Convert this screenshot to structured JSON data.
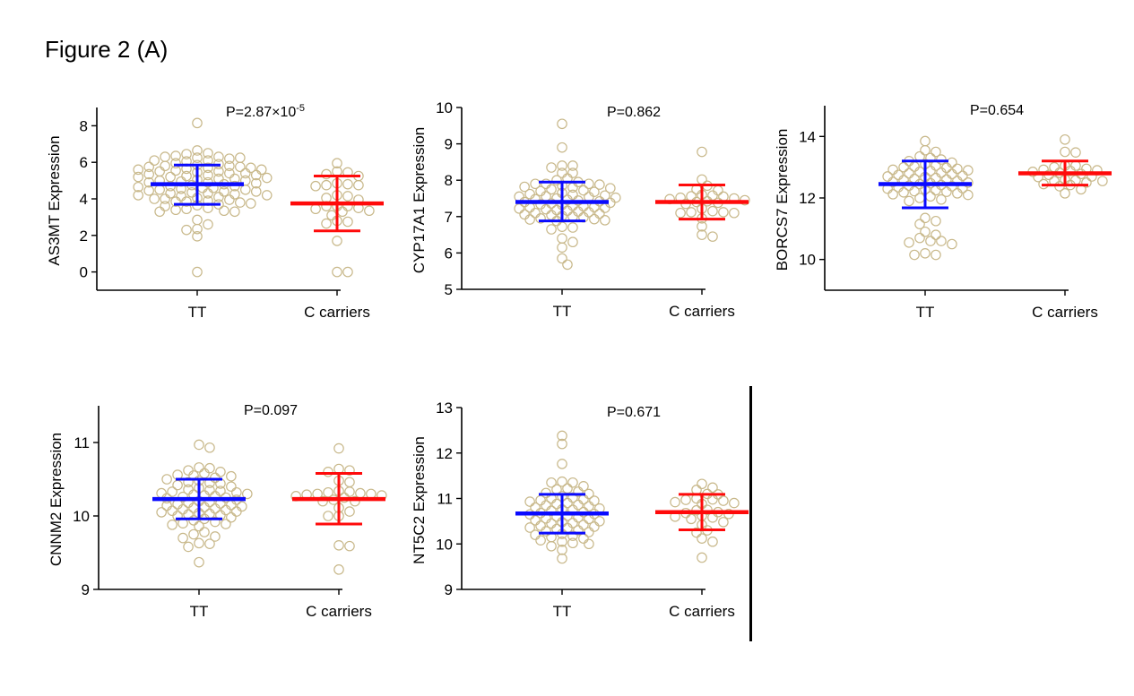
{
  "figure_title": "Figure 2 (A)",
  "colors": {
    "dot": "#c8b88a",
    "tt_bar": "#0a0aff",
    "c_bar": "#ff0a0a",
    "axis": "#000000"
  },
  "chart_data": [
    {
      "type": "scatter",
      "subtype": "dot-plot with mean ± SD",
      "title": "P=2.87×10-5",
      "title_base": "P=2.87×10",
      "title_exp": "-5",
      "ylabel": "AS3MT Expression",
      "categories": [
        "TT",
        "C carriers"
      ],
      "ylim": [
        -1,
        9
      ],
      "yticks": [
        0,
        2,
        4,
        6,
        8
      ],
      "series": [
        {
          "name": "TT",
          "mean": 4.8,
          "sd_low": 3.7,
          "sd_high": 5.85,
          "values": [
            8.15,
            0,
            6.65,
            6.5,
            6.45,
            6.3,
            6.35,
            6.25,
            6.2,
            6.3,
            6.25,
            6.1,
            6.05,
            6.1,
            5.95,
            5.9,
            5.85,
            5.8,
            5.8,
            5.75,
            5.75,
            5.7,
            5.7,
            5.65,
            5.6,
            5.6,
            5.55,
            5.5,
            5.5,
            5.45,
            5.4,
            5.4,
            5.35,
            5.3,
            5.3,
            5.25,
            5.2,
            5.2,
            5.15,
            5.1,
            5.1,
            5.05,
            5.0,
            5.0,
            4.95,
            4.9,
            4.9,
            4.85,
            4.8,
            4.75,
            4.7,
            4.7,
            4.65,
            4.6,
            4.6,
            4.55,
            4.5,
            4.5,
            4.45,
            4.4,
            4.4,
            4.35,
            4.3,
            4.3,
            4.25,
            4.2,
            4.2,
            4.15,
            4.1,
            4.05,
            4.0,
            4.0,
            3.95,
            3.9,
            3.85,
            3.85,
            3.8,
            3.75,
            3.7,
            3.65,
            3.6,
            3.5,
            3.45,
            3.4,
            3.35,
            3.3,
            3.3,
            2.85,
            2.6,
            2.35,
            2.3,
            1.95
          ]
        },
        {
          "name": "C carriers",
          "mean": 3.75,
          "sd_low": 2.25,
          "sd_high": 5.25,
          "values": [
            5.95,
            5.5,
            5.45,
            5.35,
            5.25,
            4.85,
            4.8,
            4.75,
            4.75,
            4.7,
            4.2,
            4.15,
            4.05,
            3.95,
            3.6,
            3.6,
            3.6,
            3.5,
            3.45,
            3.35,
            3.3,
            3.1,
            2.8,
            2.75,
            2.65,
            1.7,
            0,
            0
          ]
        }
      ]
    },
    {
      "type": "scatter",
      "subtype": "dot-plot with mean ± SD",
      "title": "P=0.862",
      "ylabel": "CYP17A1 Expression",
      "categories": [
        "TT",
        "C carriers"
      ],
      "ylim": [
        5,
        10
      ],
      "yticks": [
        5,
        6,
        7,
        8,
        9,
        10
      ],
      "series": [
        {
          "name": "TT",
          "mean": 7.4,
          "sd_low": 6.88,
          "sd_high": 7.95,
          "values": [
            9.55,
            8.9,
            8.4,
            8.4,
            8.35,
            8.2,
            8.2,
            8.05,
            8.0,
            7.95,
            7.9,
            7.9,
            7.9,
            7.88,
            7.85,
            7.82,
            7.8,
            7.78,
            7.75,
            7.72,
            7.7,
            7.68,
            7.65,
            7.62,
            7.6,
            7.58,
            7.56,
            7.55,
            7.54,
            7.52,
            7.5,
            7.48,
            7.46,
            7.44,
            7.42,
            7.4,
            7.38,
            7.36,
            7.34,
            7.32,
            7.3,
            7.28,
            7.26,
            7.25,
            7.24,
            7.22,
            7.2,
            7.18,
            7.16,
            7.14,
            7.12,
            7.1,
            7.08,
            7.06,
            7.04,
            7.02,
            7.0,
            6.98,
            6.95,
            6.93,
            6.92,
            6.9,
            6.88,
            6.72,
            6.7,
            6.65,
            6.4,
            6.3,
            6.15,
            5.85,
            5.68
          ]
        },
        {
          "name": "C carriers",
          "mean": 7.4,
          "sd_low": 6.93,
          "sd_high": 7.87,
          "values": [
            8.78,
            8.02,
            7.85,
            7.75,
            7.72,
            7.6,
            7.58,
            7.56,
            7.55,
            7.52,
            7.5,
            7.48,
            7.45,
            7.42,
            7.4,
            7.38,
            7.35,
            7.22,
            7.15,
            7.12,
            7.12,
            7.1,
            7.1,
            6.95,
            6.73,
            6.5,
            6.45
          ]
        }
      ]
    },
    {
      "type": "scatter",
      "subtype": "dot-plot with mean ± SD",
      "title": "P=0.654",
      "ylabel": "BORCS7 Expression",
      "categories": [
        "TT",
        "C carriers"
      ],
      "ylim": [
        9,
        15
      ],
      "yticks": [
        10,
        12,
        14
      ],
      "series": [
        {
          "name": "TT",
          "mean": 12.45,
          "sd_low": 11.68,
          "sd_high": 13.2,
          "values": [
            13.85,
            13.55,
            13.5,
            13.35,
            13.3,
            13.25,
            13.2,
            13.15,
            13.1,
            13.05,
            13.02,
            13.0,
            12.98,
            12.95,
            12.92,
            12.9,
            12.88,
            12.85,
            12.82,
            12.8,
            12.78,
            12.75,
            12.72,
            12.7,
            12.68,
            12.65,
            12.62,
            12.6,
            12.58,
            12.55,
            12.52,
            12.5,
            12.48,
            12.45,
            12.42,
            12.4,
            12.38,
            12.35,
            12.32,
            12.3,
            12.28,
            12.25,
            12.22,
            12.2,
            12.18,
            12.15,
            12.12,
            12.1,
            12.05,
            12.0,
            11.95,
            11.9,
            11.35,
            11.25,
            11.15,
            10.9,
            10.8,
            10.7,
            10.6,
            10.6,
            10.55,
            10.5,
            10.2,
            10.15,
            10.15
          ]
        },
        {
          "name": "C carriers",
          "mean": 12.8,
          "sd_low": 12.42,
          "sd_high": 13.2,
          "values": [
            13.9,
            13.5,
            13.48,
            13.05,
            13.05,
            13.0,
            12.95,
            12.92,
            12.9,
            12.88,
            12.85,
            12.82,
            12.78,
            12.75,
            12.7,
            12.68,
            12.6,
            12.58,
            12.55,
            12.55,
            12.5,
            12.45,
            12.42,
            12.38,
            12.28,
            12.15
          ]
        }
      ]
    },
    {
      "type": "scatter",
      "subtype": "dot-plot with mean ± SD",
      "title": "P=0.097",
      "ylabel": "CNNM2 Expression",
      "categories": [
        "TT",
        "C carriers"
      ],
      "ylim": [
        9,
        11.5
      ],
      "yticks": [
        9,
        10,
        11
      ],
      "series": [
        {
          "name": "TT",
          "mean": 10.23,
          "sd_low": 9.96,
          "sd_high": 10.5,
          "values": [
            10.97,
            10.93,
            10.66,
            10.65,
            10.62,
            10.6,
            10.58,
            10.56,
            10.55,
            10.54,
            10.52,
            10.5,
            10.48,
            10.46,
            10.45,
            10.44,
            10.42,
            10.4,
            10.38,
            10.36,
            10.35,
            10.34,
            10.33,
            10.32,
            10.31,
            10.3,
            10.29,
            10.28,
            10.27,
            10.26,
            10.25,
            10.24,
            10.22,
            10.2,
            10.19,
            10.18,
            10.17,
            10.16,
            10.15,
            10.14,
            10.13,
            10.12,
            10.11,
            10.1,
            10.09,
            10.08,
            10.07,
            10.06,
            10.05,
            10.04,
            10.03,
            10.02,
            10.01,
            10.0,
            9.98,
            9.96,
            9.94,
            9.92,
            9.9,
            9.89,
            9.88,
            9.86,
            9.78,
            9.75,
            9.72,
            9.7,
            9.63,
            9.62,
            9.58,
            9.37
          ]
        },
        {
          "name": "C carriers",
          "mean": 10.23,
          "sd_low": 9.89,
          "sd_high": 10.58,
          "values": [
            10.92,
            10.64,
            10.62,
            10.6,
            10.48,
            10.46,
            10.34,
            10.33,
            10.32,
            10.31,
            10.3,
            10.3,
            10.29,
            10.28,
            10.27,
            10.25,
            10.22,
            10.2,
            10.2,
            10.11,
            10.06,
            10.0,
            10.0,
            9.6,
            9.59,
            9.27
          ]
        }
      ]
    },
    {
      "type": "scatter",
      "subtype": "dot-plot with mean ± SD",
      "title": "P=0.671",
      "ylabel": "NT5C2 Expression",
      "categories": [
        "TT",
        "C carriers"
      ],
      "ylim": [
        9,
        13
      ],
      "yticks": [
        9,
        10,
        11,
        12,
        13
      ],
      "series": [
        {
          "name": "TT",
          "mean": 10.67,
          "sd_low": 10.24,
          "sd_high": 11.09,
          "values": [
            12.38,
            12.2,
            11.76,
            11.37,
            11.35,
            11.35,
            11.27,
            11.22,
            11.2,
            11.15,
            11.12,
            11.1,
            11.05,
            11.02,
            11.0,
            10.98,
            10.96,
            10.95,
            10.93,
            10.9,
            10.88,
            10.86,
            10.85,
            10.83,
            10.8,
            10.78,
            10.76,
            10.75,
            10.73,
            10.7,
            10.68,
            10.66,
            10.65,
            10.62,
            10.6,
            10.58,
            10.56,
            10.55,
            10.52,
            10.5,
            10.48,
            10.46,
            10.45,
            10.42,
            10.4,
            10.38,
            10.36,
            10.35,
            10.33,
            10.3,
            10.28,
            10.26,
            10.22,
            10.2,
            10.18,
            10.15,
            10.12,
            10.08,
            10.05,
            10.02,
            10.0,
            9.95,
            9.87,
            9.68
          ]
        },
        {
          "name": "C carriers",
          "mean": 10.7,
          "sd_low": 10.31,
          "sd_high": 11.09,
          "values": [
            11.32,
            11.24,
            11.19,
            11.1,
            11.09,
            11.0,
            10.98,
            10.97,
            10.95,
            10.92,
            10.9,
            10.88,
            10.75,
            10.74,
            10.7,
            10.68,
            10.66,
            10.62,
            10.6,
            10.58,
            10.55,
            10.48,
            10.42,
            10.3,
            10.25,
            10.12,
            10.05,
            9.7
          ]
        }
      ]
    }
  ]
}
